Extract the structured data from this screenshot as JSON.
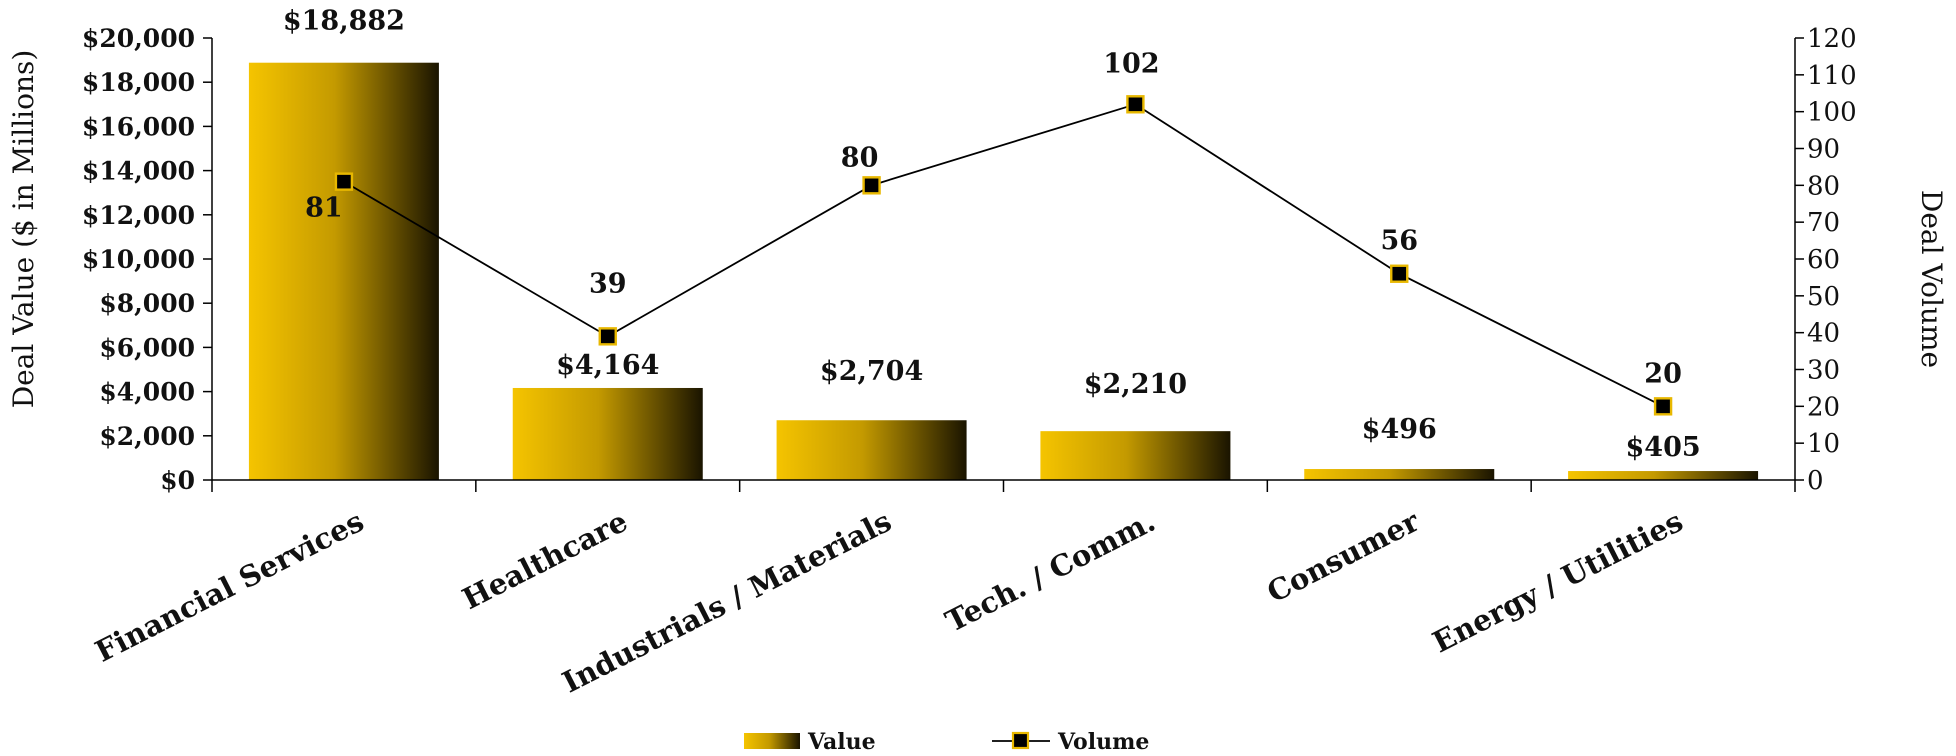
{
  "chart_data": {
    "type": "bar",
    "categories": [
      "Financial Services",
      "Healthcare",
      "Industrials / Materials",
      "Tech. / Comm.",
      "Consumer",
      "Energy / Utilities"
    ],
    "series": [
      {
        "name": "Value",
        "type": "bar",
        "axis": "left",
        "values": [
          18882,
          4164,
          2704,
          2210,
          496,
          405
        ],
        "labels": [
          "$18,882",
          "$4,164",
          "$2,704",
          "$2,210",
          "$496",
          "$405"
        ]
      },
      {
        "name": "Volume",
        "type": "line",
        "axis": "right",
        "values": [
          81,
          39,
          80,
          102,
          56,
          20
        ],
        "labels": [
          "81",
          "39",
          "80",
          "102",
          "56",
          "20"
        ]
      }
    ],
    "ylabel": "Deal Value ($ in Millions)",
    "y2label": "Deal Volume",
    "ylim": [
      0,
      20000
    ],
    "y2lim": [
      0,
      120
    ],
    "yticks": [
      "$0",
      "$2,000",
      "$4,000",
      "$6,000",
      "$8,000",
      "$10,000",
      "$12,000",
      "$14,000",
      "$16,000",
      "$18,000",
      "$20,000"
    ],
    "y2ticks": [
      "0",
      "10",
      "20",
      "30",
      "40",
      "50",
      "60",
      "70",
      "80",
      "90",
      "100",
      "110",
      "120"
    ],
    "legend": {
      "position": "bottom",
      "entries": [
        "Value",
        "Volume"
      ]
    },
    "grid": false,
    "colors": {
      "bar_start": "#F5C400",
      "bar_end": "#1A1400",
      "line": "#000000",
      "marker_fill": "#000000",
      "marker_edge": "#E8B800"
    }
  }
}
